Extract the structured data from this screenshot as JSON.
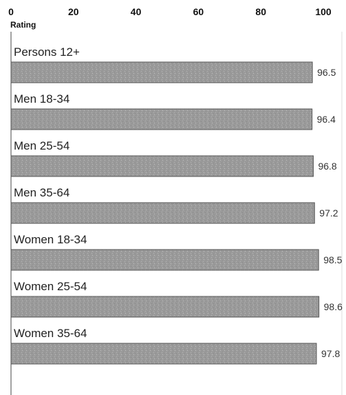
{
  "chart_data": {
    "type": "bar",
    "orientation": "horizontal",
    "xlabel": "Rating",
    "xlim": [
      0,
      100
    ],
    "xticks": [
      0,
      20,
      40,
      60,
      80,
      100
    ],
    "categories": [
      "Persons 12+",
      "Men 18-34",
      "Men 25-54",
      "Men 35-64",
      "Women 18-34",
      "Women 25-54",
      "Women 35-64"
    ],
    "values": [
      96.5,
      96.4,
      96.8,
      97.2,
      98.5,
      98.6,
      97.8
    ],
    "value_labels": [
      "96.5",
      "96.4",
      "96.8",
      "97.2",
      "98.5",
      "98.6",
      "97.8"
    ],
    "bar_color": "#9a9a9a",
    "grid": false
  }
}
